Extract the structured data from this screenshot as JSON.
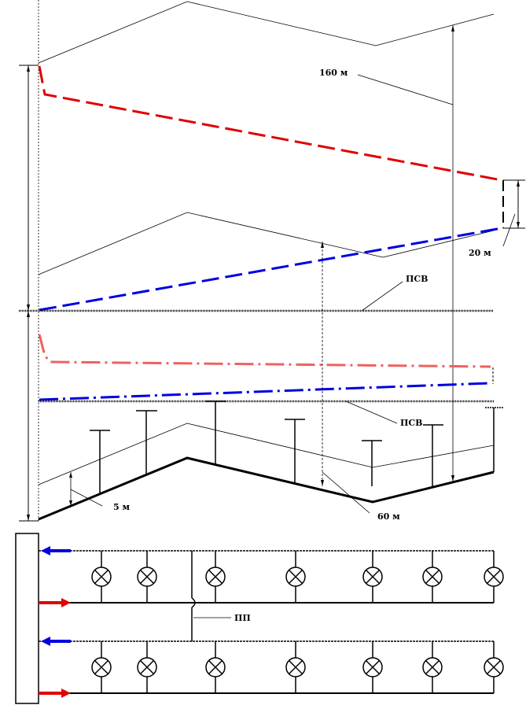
{
  "labels": {
    "dim_160": "160 м",
    "dim_20": "20 м",
    "dim_5": "5 м",
    "dim_60": "60 м",
    "psv_top": "ПСВ",
    "psv_mid": "ПСВ",
    "pp": "ПП"
  },
  "colors": {
    "line": "#000000",
    "red": "#e00000",
    "blue": "#0000e0",
    "light_red": "#f06060",
    "supply_arrow": "#e00000",
    "return_arrow": "#0000e0"
  },
  "lamp_rows": 2,
  "lamps_per_row": 7,
  "ground_stands": 6
}
